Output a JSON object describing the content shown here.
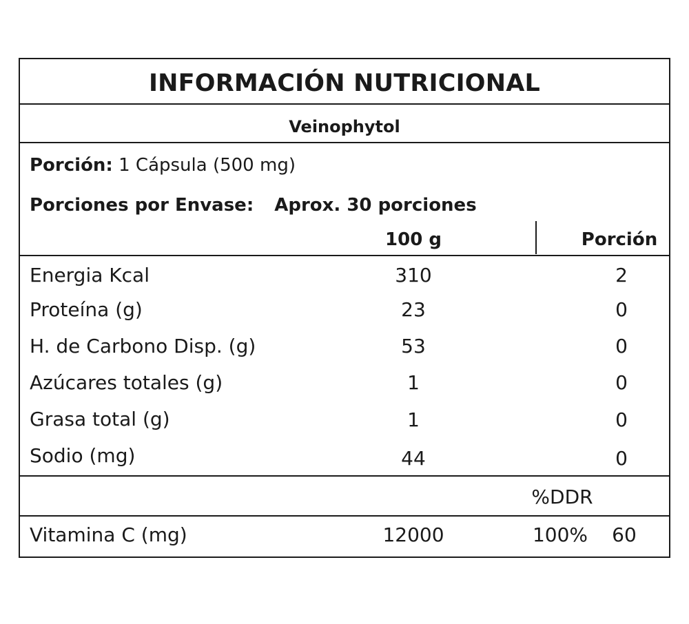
{
  "label": {
    "title": "INFORMACIÓN NUTRICIONAL",
    "product": "Veinophytol",
    "serving_label": "Porción:",
    "serving_value": "1 Cápsula (500 mg)",
    "servings_label": "Porciones por Envase:",
    "servings_value": "Aprox. 30 porciones",
    "col_100g": "100 g",
    "col_portion": "Porción",
    "rows": [
      {
        "name": "Energia Kcal",
        "per100": "310",
        "portion": "2"
      },
      {
        "name": "Proteína (g)",
        "per100": "23",
        "portion": "0"
      },
      {
        "name": "H. de Carbono Disp. (g)",
        "per100": "53",
        "portion": "0"
      },
      {
        "name": "Azúcares totales (g)",
        "per100": "1",
        "portion": "0"
      },
      {
        "name": "Grasa total (g)",
        "per100": "1",
        "portion": "0"
      },
      {
        "name": "Sodio (mg)",
        "per100": "44",
        "portion": "0"
      }
    ],
    "ddr_header": "%DDR",
    "vitamin": {
      "name": "Vitamina C (mg)",
      "per100": "12000",
      "ddr": "100%",
      "portion": "60"
    }
  }
}
